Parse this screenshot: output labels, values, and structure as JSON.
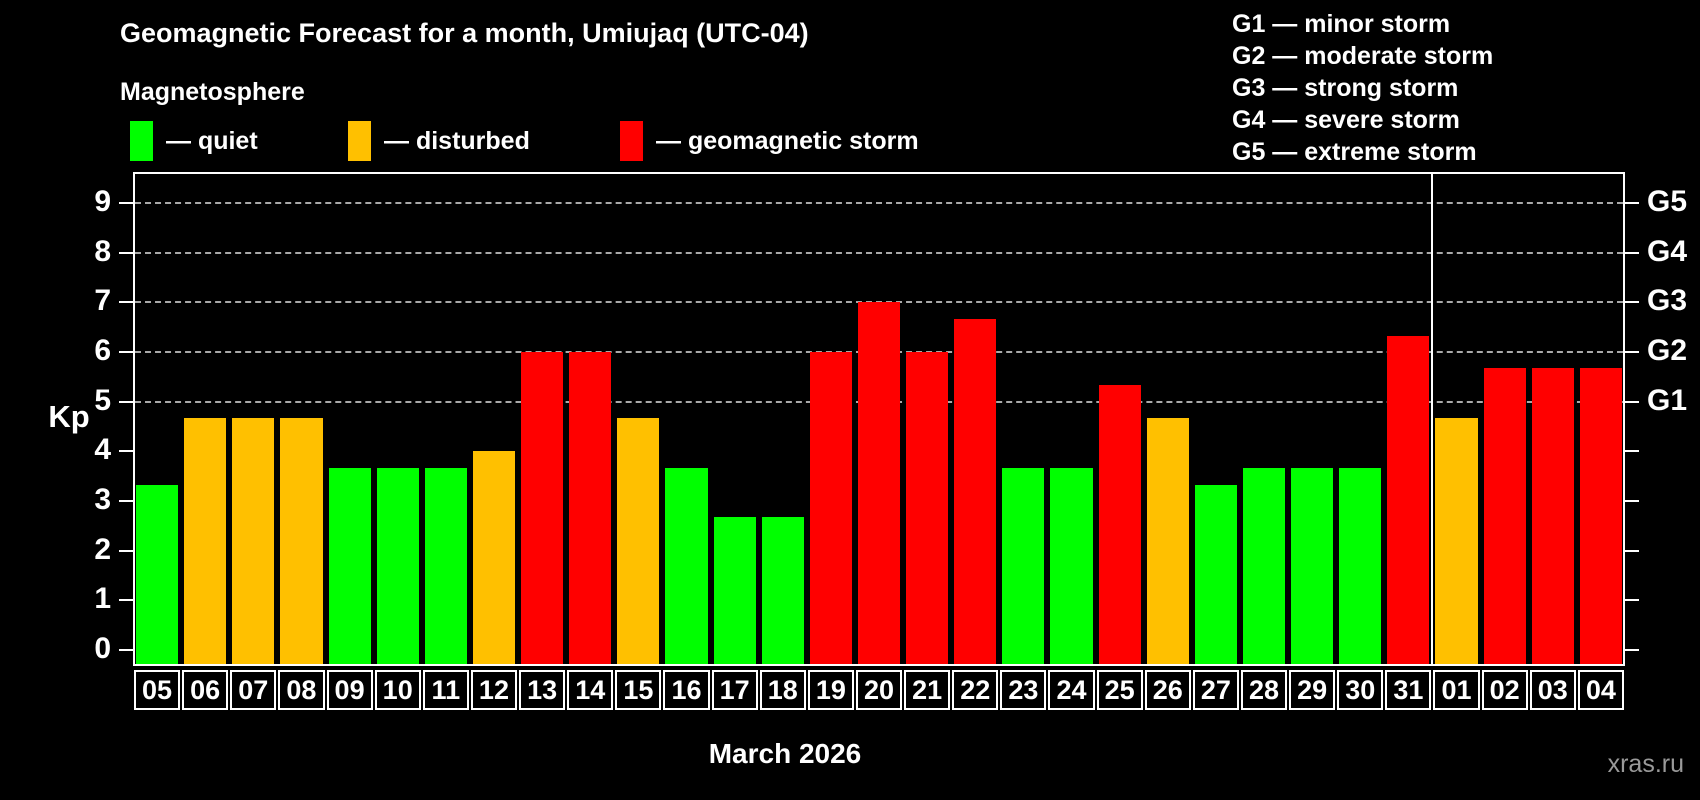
{
  "title": "Geomagnetic Forecast for a month, Umiujaq (UTC-04)",
  "subtitle": "Magnetosphere",
  "legend": [
    {
      "key": "quiet",
      "label": "— quiet",
      "color": "#00FF00"
    },
    {
      "key": "disturbed",
      "label": "— disturbed",
      "color": "#FFC000"
    },
    {
      "key": "storm",
      "label": "— geomagnetic storm",
      "color": "#FF0000"
    }
  ],
  "g_scale_legend": [
    "G1 — minor storm",
    "G2 — moderate storm",
    "G3 — strong storm",
    "G4 — severe storm",
    "G5 — extreme storm"
  ],
  "y_axis": {
    "label": "Kp",
    "ticks": [
      0,
      1,
      2,
      3,
      4,
      5,
      6,
      7,
      8,
      9
    ]
  },
  "right_axis": {
    "tick_levels": [
      0,
      1,
      2,
      3,
      4,
      5,
      6,
      7,
      8,
      9
    ],
    "labels": [
      {
        "kp": 5,
        "label": "G1"
      },
      {
        "kp": 6,
        "label": "G2"
      },
      {
        "kp": 7,
        "label": "G3"
      },
      {
        "kp": 8,
        "label": "G4"
      },
      {
        "kp": 9,
        "label": "G5"
      }
    ]
  },
  "x_axis_title": "March 2026",
  "watermark": "xras.ru",
  "chart_data": {
    "type": "bar",
    "title": "Geomagnetic Forecast for a month, Umiujaq (UTC-04)",
    "xlabel": "March 2026",
    "ylabel": "Kp",
    "ylim": [
      0,
      9.4
    ],
    "grid_levels": [
      5,
      6,
      7,
      8,
      9
    ],
    "grid_on": true,
    "categories": [
      "05",
      "06",
      "07",
      "08",
      "09",
      "10",
      "11",
      "12",
      "13",
      "14",
      "15",
      "16",
      "17",
      "18",
      "19",
      "20",
      "21",
      "22",
      "23",
      "24",
      "25",
      "26",
      "27",
      "28",
      "29",
      "30",
      "31",
      "01",
      "02",
      "03",
      "04"
    ],
    "values": [
      3.33,
      4.67,
      4.67,
      4.67,
      3.67,
      3.67,
      3.67,
      4.0,
      6.0,
      6.0,
      4.67,
      3.67,
      2.67,
      2.67,
      6.0,
      7.0,
      6.0,
      6.67,
      3.67,
      3.67,
      5.33,
      4.67,
      3.33,
      3.67,
      3.67,
      3.67,
      6.33,
      4.67,
      5.67,
      5.67,
      5.67
    ],
    "levels": [
      "quiet",
      "disturbed",
      "disturbed",
      "disturbed",
      "quiet",
      "quiet",
      "quiet",
      "disturbed",
      "storm",
      "storm",
      "disturbed",
      "quiet",
      "quiet",
      "quiet",
      "storm",
      "storm",
      "storm",
      "storm",
      "quiet",
      "quiet",
      "storm",
      "disturbed",
      "quiet",
      "quiet",
      "quiet",
      "quiet",
      "storm",
      "disturbed",
      "storm",
      "storm",
      "storm"
    ],
    "colors": {
      "quiet": "#00FF00",
      "disturbed": "#FFC000",
      "storm": "#FF0000"
    },
    "month_divider_after_index": 26
  }
}
